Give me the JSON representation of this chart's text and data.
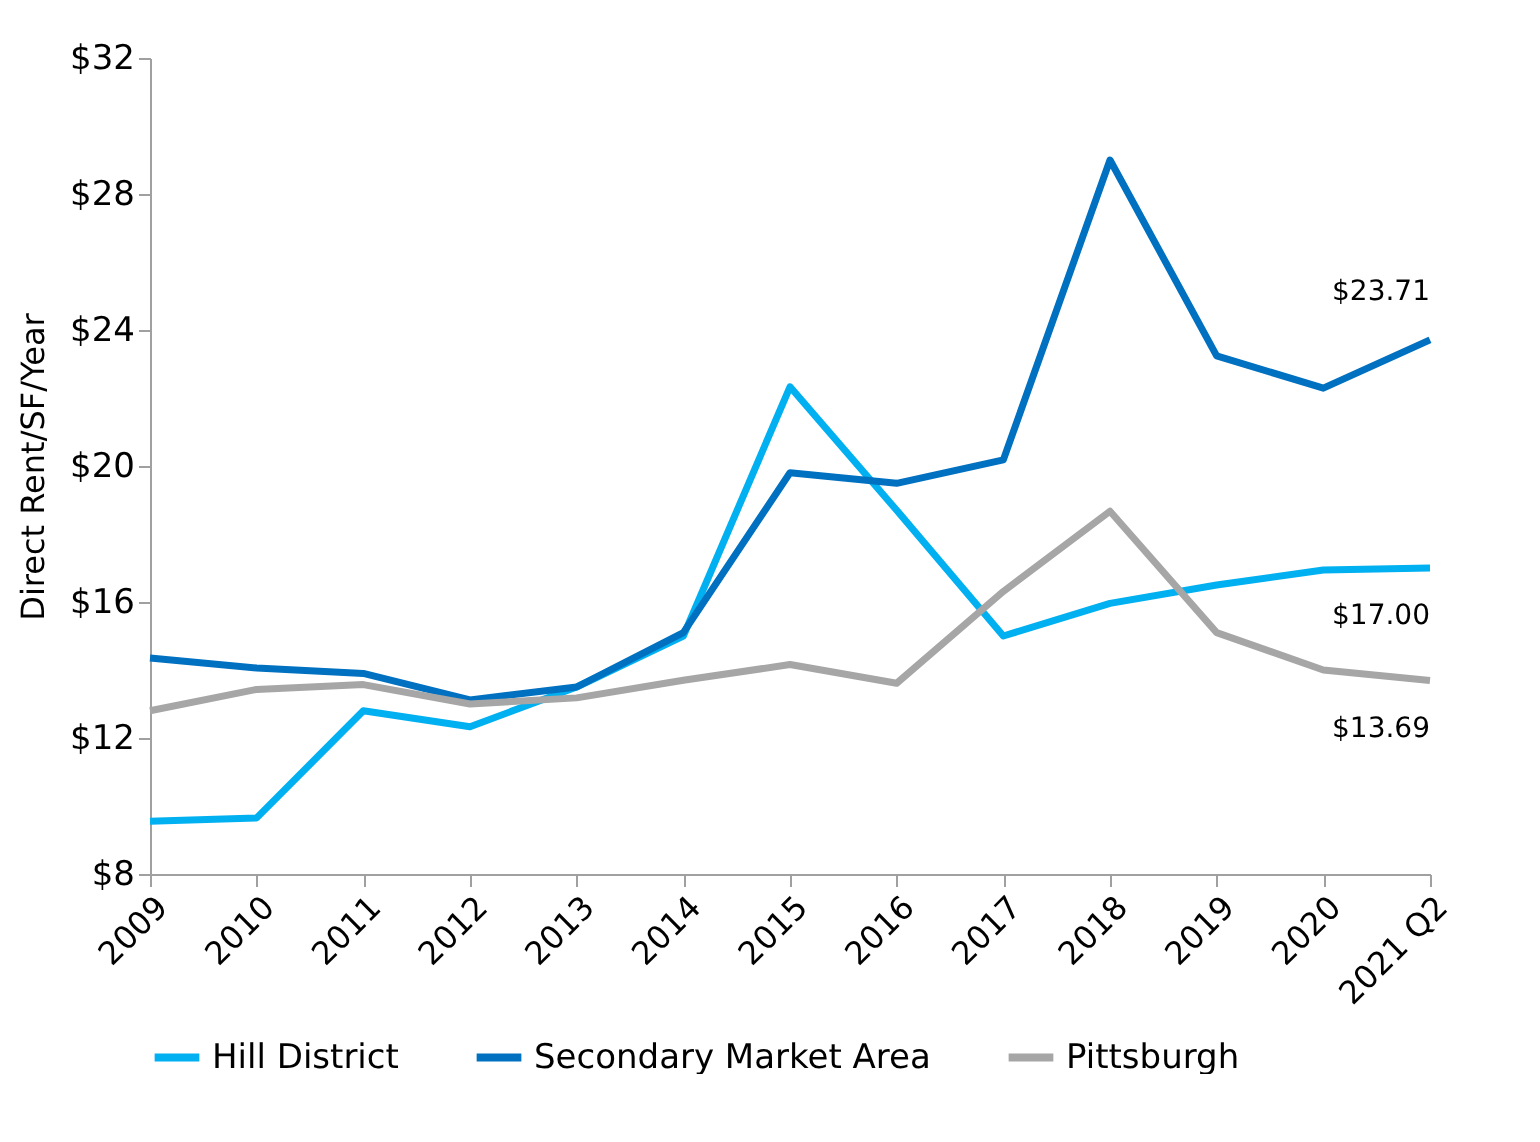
{
  "chart_data": {
    "type": "line",
    "ylabel": "Direct Rent/SF/Year",
    "categories": [
      "2009",
      "2010",
      "2011",
      "2012",
      "2013",
      "2014",
      "2015",
      "2016",
      "2017",
      "2018",
      "2019",
      "2020",
      "2021 Q2"
    ],
    "series": [
      {
        "name": "Hill District",
        "color": "#00b0f0",
        "values": [
          9.55,
          9.65,
          12.8,
          12.33,
          13.5,
          15.0,
          22.33,
          18.7,
          15.0,
          15.96,
          16.5,
          16.94,
          17.0
        ],
        "value_labels": [
          null,
          null,
          null,
          null,
          null,
          null,
          null,
          null,
          null,
          null,
          null,
          null,
          "$17.00"
        ]
      },
      {
        "name": "Secondary Market Area",
        "color": "#0070c0",
        "values": [
          14.35,
          14.06,
          13.9,
          13.12,
          13.5,
          15.1,
          19.8,
          19.49,
          20.18,
          29.0,
          23.24,
          22.29,
          23.71
        ],
        "value_labels": [
          null,
          null,
          null,
          null,
          null,
          null,
          null,
          null,
          null,
          null,
          null,
          null,
          "$23.71"
        ]
      },
      {
        "name": "Pittsburgh",
        "color": "#a6a6a6",
        "values": [
          12.8,
          13.43,
          13.57,
          13.0,
          13.18,
          13.7,
          14.16,
          13.61,
          16.31,
          18.67,
          15.1,
          14.0,
          13.69
        ],
        "value_labels": [
          null,
          null,
          null,
          null,
          null,
          null,
          null,
          null,
          null,
          null,
          null,
          null,
          "$13.69"
        ]
      }
    ],
    "ylim": [
      8,
      32
    ],
    "yticks": [
      {
        "value": 8,
        "label": "$8"
      },
      {
        "value": 12,
        "label": "$12"
      },
      {
        "value": 16,
        "label": "$16"
      },
      {
        "value": 20,
        "label": "$20"
      },
      {
        "value": 24,
        "label": "$24"
      },
      {
        "value": 28,
        "label": "$28"
      },
      {
        "value": 32,
        "label": "$32"
      }
    ],
    "grid": false,
    "legend": "bottom",
    "marker": "none",
    "line_style": "solid"
  }
}
